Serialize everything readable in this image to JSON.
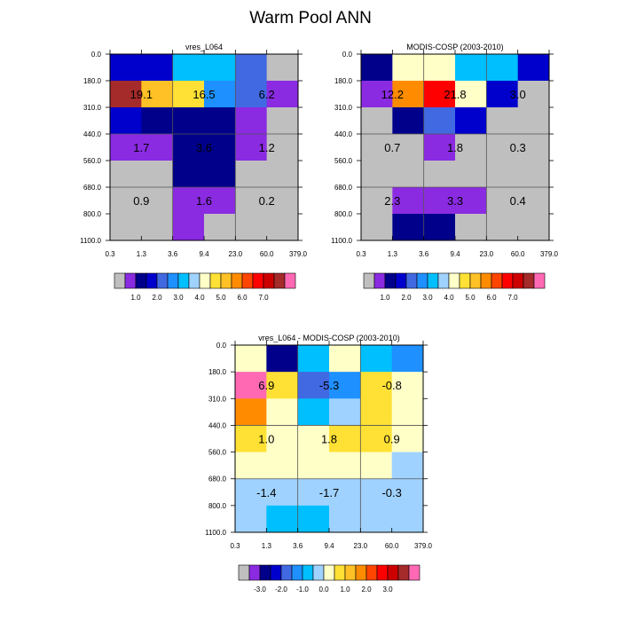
{
  "title": "Warm Pool ANN",
  "palettes": {
    "main": [
      "#bfbfbf",
      "#8a2be2",
      "#00008b",
      "#0000cd",
      "#4169e1",
      "#1e90ff",
      "#00bfff",
      "#a0d2ff",
      "#ffffc8",
      "#ffe135",
      "#ffc125",
      "#ff8c00",
      "#ff4500",
      "#ff0000",
      "#cd0000",
      "#a52a2a",
      "#ff69b4"
    ],
    "diff": [
      "#bfbfbf",
      "#8a2be2",
      "#00008b",
      "#0000cd",
      "#4169e1",
      "#1e90ff",
      "#00bfff",
      "#a0d2ff",
      "#ffffc8",
      "#ffe135",
      "#ffc125",
      "#ff8c00",
      "#ff4500",
      "#ff0000",
      "#cd0000",
      "#a52a2a",
      "#ff69b4"
    ]
  },
  "chart_data": [
    {
      "type": "heatmap",
      "title": "vres_L064",
      "x_ticks": [
        "0.3",
        "1.3",
        "3.6",
        "9.4",
        "23.0",
        "60.0",
        "379.0"
      ],
      "y_ticks": [
        "0.0",
        "180.0",
        "310.0",
        "440.0",
        "560.0",
        "680.0",
        "800.0",
        "1100.0"
      ],
      "cells": [
        [
          3,
          3,
          6,
          6,
          4,
          0
        ],
        [
          15,
          10,
          9,
          5,
          4,
          1
        ],
        [
          3,
          2,
          2,
          2,
          1,
          0
        ],
        [
          1,
          1,
          2,
          2,
          1,
          0
        ],
        [
          0,
          0,
          2,
          2,
          0,
          0
        ],
        [
          0,
          0,
          1,
          1,
          0,
          0
        ],
        [
          0,
          0,
          1,
          0,
          0,
          0
        ]
      ],
      "labels": [
        {
          "text": "19.1",
          "row": 1,
          "col": 0.5
        },
        {
          "text": "16.5",
          "row": 1,
          "col": 2.5
        },
        {
          "text": "6.2",
          "row": 1,
          "col": 4.5
        },
        {
          "text": "1.7",
          "row": 3,
          "col": 0.5
        },
        {
          "text": "3.6",
          "row": 3,
          "col": 2.5
        },
        {
          "text": "1.2",
          "row": 3,
          "col": 4.5
        },
        {
          "text": "0.9",
          "row": 5,
          "col": 0.5
        },
        {
          "text": "1.6",
          "row": 5,
          "col": 2.5
        },
        {
          "text": "0.2",
          "row": 5,
          "col": 4.5
        }
      ],
      "palette": "main",
      "colorbar_labels": [
        "1.0",
        "2.0",
        "3.0",
        "4.0",
        "5.0",
        "6.0",
        "7.0"
      ]
    },
    {
      "type": "heatmap",
      "title": "MODIS-COSP (2003-2010)",
      "x_ticks": [
        "0.3",
        "1.3",
        "3.6",
        "9.4",
        "23.0",
        "60.0",
        "379.0"
      ],
      "y_ticks": [
        "0.0",
        "180.0",
        "310.0",
        "440.0",
        "560.0",
        "680.0",
        "800.0",
        "1100.0"
      ],
      "cells": [
        [
          2,
          8,
          8,
          6,
          6,
          3
        ],
        [
          1,
          11,
          13,
          8,
          3,
          0
        ],
        [
          0,
          2,
          4,
          3,
          0,
          0
        ],
        [
          0,
          0,
          1,
          0,
          0,
          0
        ],
        [
          0,
          0,
          0,
          0,
          0,
          0
        ],
        [
          0,
          1,
          1,
          1,
          0,
          0
        ],
        [
          0,
          2,
          2,
          0,
          0,
          0
        ]
      ],
      "labels": [
        {
          "text": "12.2",
          "row": 1,
          "col": 0.5
        },
        {
          "text": "21.8",
          "row": 1,
          "col": 2.5
        },
        {
          "text": "3.0",
          "row": 1,
          "col": 4.5
        },
        {
          "text": "0.7",
          "row": 3,
          "col": 0.5
        },
        {
          "text": "1.8",
          "row": 3,
          "col": 2.5
        },
        {
          "text": "0.3",
          "row": 3,
          "col": 4.5
        },
        {
          "text": "2.3",
          "row": 5,
          "col": 0.5
        },
        {
          "text": "3.3",
          "row": 5,
          "col": 2.5
        },
        {
          "text": "0.4",
          "row": 5,
          "col": 4.5
        }
      ],
      "palette": "main",
      "colorbar_labels": [
        "1.0",
        "2.0",
        "3.0",
        "4.0",
        "5.0",
        "6.0",
        "7.0"
      ]
    },
    {
      "type": "heatmap",
      "title": "vres_L064 - MODIS-COSP (2003-2010)",
      "x_ticks": [
        "0.3",
        "1.3",
        "3.6",
        "9.4",
        "23.0",
        "60.0",
        "379.0"
      ],
      "y_ticks": [
        "0.0",
        "180.0",
        "310.0",
        "440.0",
        "560.0",
        "680.0",
        "800.0",
        "1100.0"
      ],
      "cells": [
        [
          8,
          2,
          6,
          8,
          6,
          5
        ],
        [
          16,
          9,
          4,
          5,
          9,
          8
        ],
        [
          11,
          8,
          6,
          7,
          9,
          8
        ],
        [
          9,
          8,
          8,
          9,
          9,
          8
        ],
        [
          8,
          8,
          8,
          8,
          8,
          7
        ],
        [
          7,
          7,
          7,
          7,
          7,
          7
        ],
        [
          7,
          6,
          6,
          7,
          7,
          7
        ]
      ],
      "labels": [
        {
          "text": "6.9",
          "row": 1,
          "col": 0.5
        },
        {
          "text": "-5.3",
          "row": 1,
          "col": 2.5
        },
        {
          "text": "-0.8",
          "row": 1,
          "col": 4.5
        },
        {
          "text": "1.0",
          "row": 3,
          "col": 0.5
        },
        {
          "text": "1.8",
          "row": 3,
          "col": 2.5
        },
        {
          "text": "0.9",
          "row": 3,
          "col": 4.5
        },
        {
          "text": "-1.4",
          "row": 5,
          "col": 0.5
        },
        {
          "text": "-1.7",
          "row": 5,
          "col": 2.5
        },
        {
          "text": "-0.3",
          "row": 5,
          "col": 4.5
        }
      ],
      "palette": "diff",
      "colorbar_labels": [
        "-3.0",
        "-2.0",
        "-1.0",
        "0.0",
        "1.0",
        "2.0",
        "3.0"
      ]
    }
  ]
}
